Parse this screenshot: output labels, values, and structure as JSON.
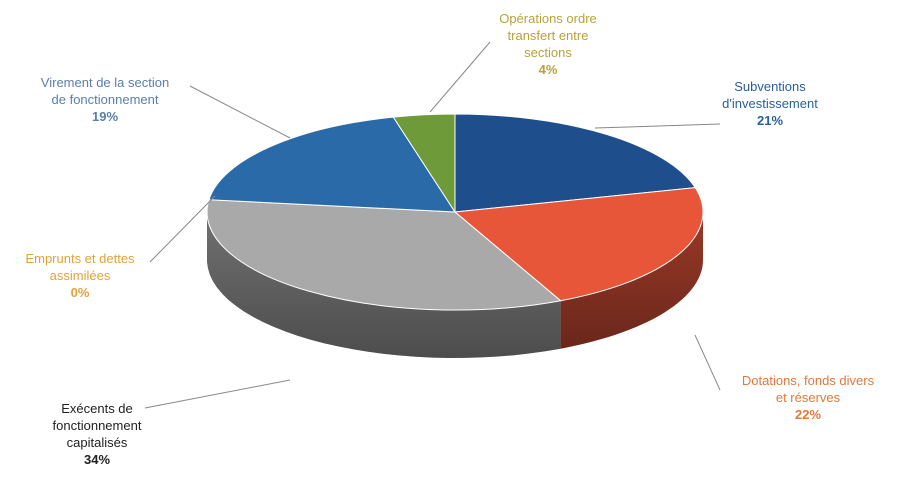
{
  "chart_data": {
    "type": "pie",
    "title": "",
    "style": "3d-exploded",
    "legend": "none",
    "slices": [
      {
        "label": "Subventions\nd'investissement",
        "value": 21,
        "pct_label": "21%",
        "color": "#1f4e8c"
      },
      {
        "label": "Dotations, fonds divers\net réserves",
        "value": 22,
        "pct_label": "22%",
        "color": "#e8563a"
      },
      {
        "label": "Exécents de\nfonctionnement\ncapitalisés",
        "value": 34,
        "pct_label": "34%",
        "color": "#a9a9a9"
      },
      {
        "label": "Emprunts et dettes\nassimilées",
        "value": 0,
        "pct_label": "0%",
        "color": "#e0a33a"
      },
      {
        "label": "Virement de la section\nde fonctionnement",
        "value": 19,
        "pct_label": "19%",
        "color": "#2a6aa8"
      },
      {
        "label": "Opérations ordre\ntransfert entre\nsections",
        "value": 4,
        "pct_label": "4%",
        "color": "#6f9a3a"
      }
    ],
    "label_colors": [
      "#2a5ea0",
      "#e0793a",
      "#222222",
      "#e0a33a",
      "#5a7fa8",
      "#b8a23a"
    ]
  }
}
